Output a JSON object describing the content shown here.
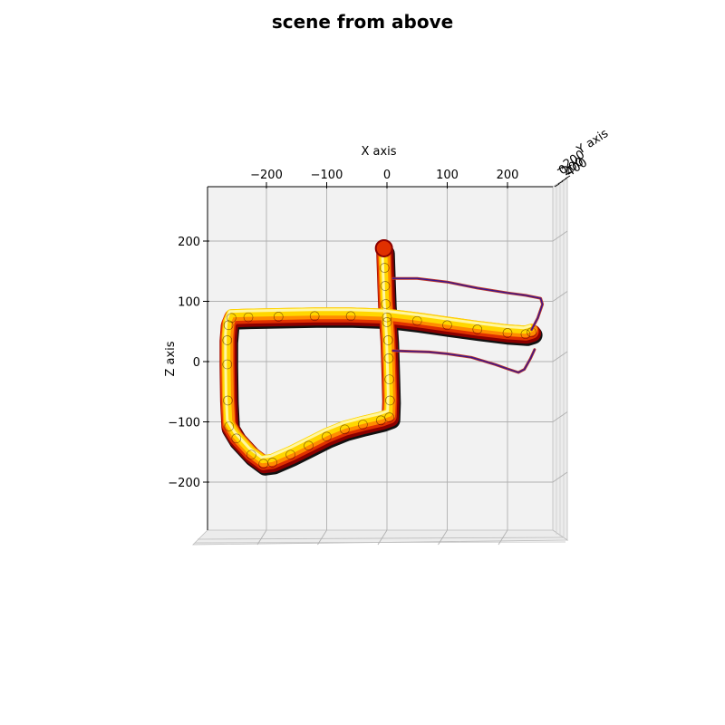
{
  "chart_data": {
    "type": "line",
    "title": "scene from above",
    "xlabel": "X axis",
    "ylabel": "Y axis",
    "zlabel": "Z axis",
    "view": "top-down 3D projection (X horizontal, Z vertical)",
    "xlim": [
      -290,
      275
    ],
    "zlim": [
      -280,
      285
    ],
    "x_ticks": [
      "−200",
      "−100",
      "0",
      "100",
      "200"
    ],
    "x_tick_values": [
      -200,
      -100,
      0,
      100,
      200
    ],
    "z_ticks": [
      "200",
      "100",
      "0",
      "−100",
      "−200"
    ],
    "z_tick_values": [
      200,
      100,
      0,
      -100,
      -200
    ],
    "y_ticks": [
      "−200",
      "0",
      "200",
      "400"
    ],
    "grid": true,
    "series": [
      {
        "style": "thick",
        "colors": [
          "#ffd700",
          "#ff8c00",
          "#e03000",
          "#8b0000",
          "#111111"
        ],
        "points": [
          [
            -5,
            188
          ],
          [
            -4,
            160
          ],
          [
            -3,
            130
          ],
          [
            -2,
            100
          ],
          [
            0,
            70
          ],
          [
            2,
            40
          ],
          [
            3,
            10
          ],
          [
            4,
            -25
          ],
          [
            5,
            -60
          ],
          [
            4,
            -88
          ],
          [
            -10,
            -93
          ],
          [
            -40,
            -100
          ],
          [
            -70,
            -108
          ],
          [
            -100,
            -120
          ],
          [
            -130,
            -135
          ],
          [
            -160,
            -150
          ],
          [
            -190,
            -163
          ],
          [
            -205,
            -165
          ],
          [
            -225,
            -150
          ],
          [
            -250,
            -123
          ],
          [
            -262,
            -103
          ],
          [
            -264,
            -60
          ],
          [
            -265,
            0
          ],
          [
            -265,
            40
          ],
          [
            -263,
            65
          ],
          [
            -258,
            77
          ],
          [
            -230,
            78
          ],
          [
            -180,
            79
          ],
          [
            -120,
            80
          ],
          [
            -60,
            80
          ],
          [
            0,
            78
          ],
          [
            50,
            72
          ],
          [
            100,
            65
          ],
          [
            150,
            58
          ],
          [
            200,
            52
          ],
          [
            230,
            50
          ],
          [
            240,
            53
          ]
        ]
      },
      {
        "style": "thin",
        "colors": [
          "#2010a0",
          "#c0392b"
        ],
        "points": [
          [
            240,
            53
          ],
          [
            250,
            72
          ],
          [
            258,
            95
          ],
          [
            255,
            105
          ],
          [
            230,
            110
          ],
          [
            200,
            114
          ],
          [
            150,
            122
          ],
          [
            100,
            132
          ],
          [
            50,
            138
          ],
          [
            10,
            138
          ]
        ]
      },
      {
        "style": "thin",
        "colors": [
          "#2010a0",
          "#c0392b"
        ],
        "points": [
          [
            10,
            18
          ],
          [
            40,
            17
          ],
          [
            70,
            16
          ],
          [
            100,
            13
          ],
          [
            140,
            7
          ],
          [
            180,
            -5
          ],
          [
            200,
            -12
          ],
          [
            218,
            -18
          ],
          [
            228,
            -13
          ],
          [
            238,
            5
          ],
          [
            245,
            20
          ]
        ]
      }
    ]
  }
}
